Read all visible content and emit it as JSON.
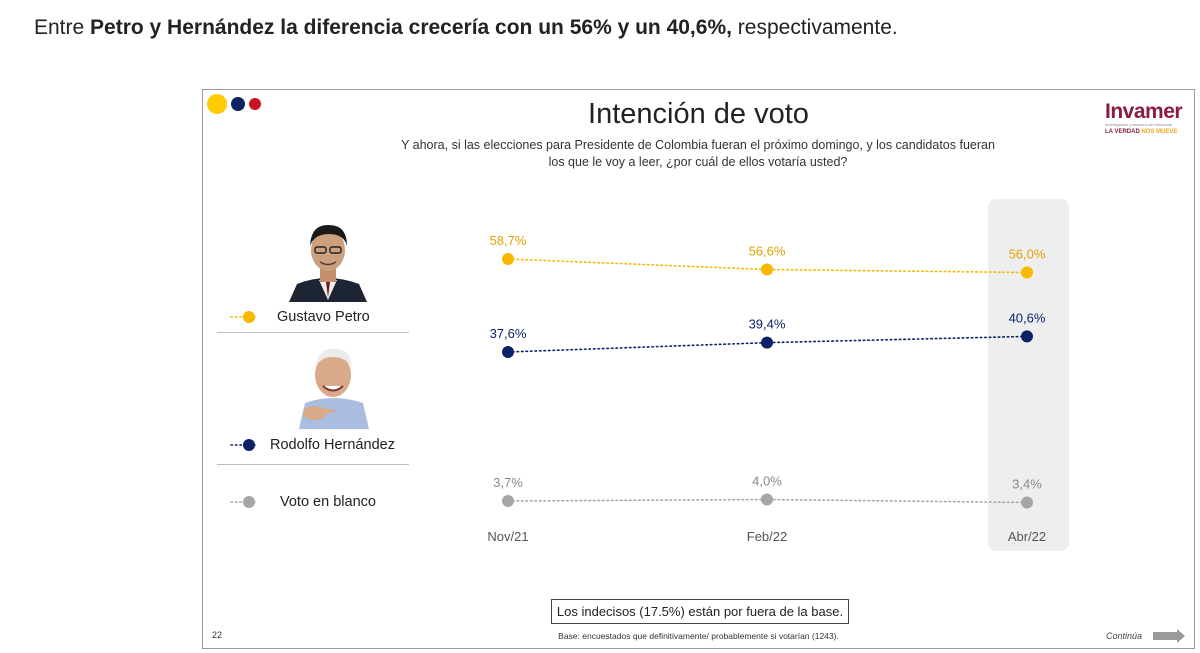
{
  "headline": {
    "prefix": "Entre ",
    "bold": "Petro y Hernández la diferencia crecería con un 56% y un 40,6%,",
    "suffix": " respectivamente."
  },
  "slide": {
    "title": "Intención de voto",
    "question": "Y ahora, si las elecciones para Presidente de Colombia fueran el próximo domingo, y los candidatos fueran los que le voy a leer, ¿por cuál de ellos votaría usted?",
    "logo": {
      "name": "Invamer",
      "subtitle": "investigación y asesoría de mercados",
      "tagline_a": "LA VERDAD ",
      "tagline_b": "NOS MUEVE"
    },
    "note": "Los indecisos (17.5%) están por fuera de la base.",
    "base": "Base: encuestados que definitivamente/ probablemente si votarían (1243).",
    "page_number": "22",
    "continue_label": "Continúa",
    "brand_dots": [
      "#ffcc00",
      "#0d2266",
      "#cc1122"
    ]
  },
  "chart_data": {
    "type": "line",
    "categories": [
      "Nov/21",
      "Feb/22",
      "Abr/22"
    ],
    "highlighted_category": "Abr/22",
    "series": [
      {
        "name": "Gustavo Petro",
        "color": "#f7b800",
        "label_color": "#e0a400",
        "values": [
          58.7,
          56.6,
          56.0
        ],
        "labels": [
          "58,7%",
          "56,6%",
          "56,0%"
        ]
      },
      {
        "name": "Rodolfo Hernández",
        "color": "#0d2266",
        "label_color": "#0d2266",
        "values": [
          37.6,
          39.4,
          40.6
        ],
        "labels": [
          "37,6%",
          "39,4%",
          "40,6%"
        ]
      },
      {
        "name": "Voto en blanco",
        "color": "#a6a6a6",
        "label_color": "#888888",
        "values": [
          3.7,
          4.0,
          3.4
        ],
        "labels": [
          "3,7%",
          "4,0%",
          "3,4%"
        ]
      }
    ],
    "line_style": "dotted",
    "axis_labels_shown": false
  }
}
